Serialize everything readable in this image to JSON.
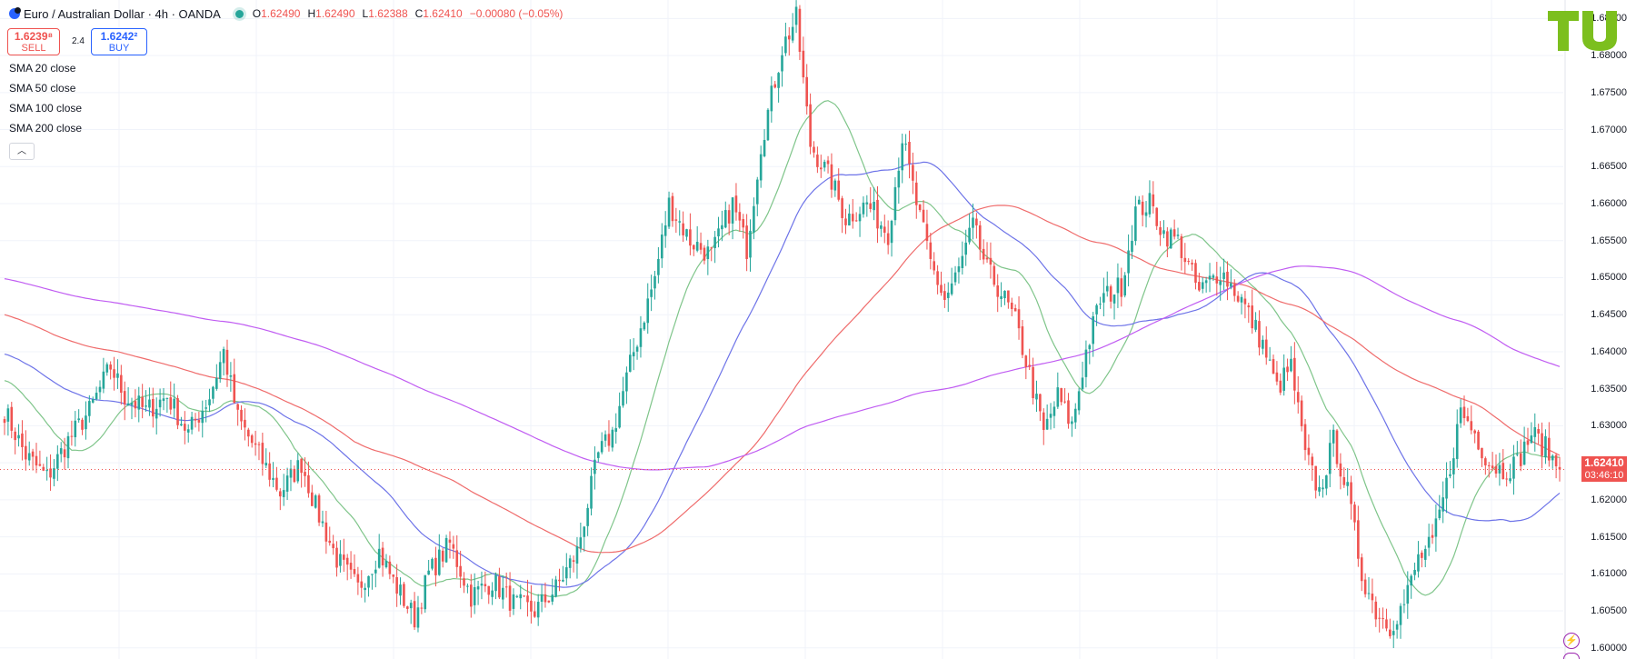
{
  "header": {
    "symbol": "Euro / Australian Dollar · 4h · OANDA",
    "ohlc": [
      {
        "k": "O",
        "v": "1.62490"
      },
      {
        "k": "H",
        "v": "1.62490"
      },
      {
        "k": "L",
        "v": "1.62388"
      },
      {
        "k": "C",
        "v": "1.62410"
      }
    ],
    "change": "−0.00080 (−0.05%)"
  },
  "trade": {
    "sell_price": "1.6239⁸",
    "sell_label": "SELL",
    "spread": "2.4",
    "buy_price": "1.6242²",
    "buy_label": "BUY"
  },
  "indicators": [
    "SMA 20 close",
    "SMA 50 close",
    "SMA 100 close",
    "SMA 200 close"
  ],
  "collapse_icon": "chevron-up-icon",
  "last_price": {
    "price": "1.62410",
    "countdown": "03:46:10"
  },
  "colors": {
    "up": "#26a69a",
    "down": "#ef5350",
    "sma20": "#7fc58a",
    "sma50": "#6d73e8",
    "sma100": "#ef6b6b",
    "sma200": "#c05cf2",
    "accent": "#2962ff",
    "logo": "#7cbf1e"
  },
  "chart_data": {
    "type": "candlestick",
    "symbol": "EUR/AUD",
    "timeframe": "4h",
    "ylim": [
      1.5985,
      1.6875
    ],
    "y_ticks": [
      "1.68500",
      "1.68000",
      "1.67500",
      "1.67000",
      "1.66500",
      "1.66000",
      "1.65500",
      "1.65000",
      "1.64500",
      "1.64000",
      "1.63500",
      "1.63000",
      "1.62500",
      "1.62000",
      "1.61500",
      "1.61000",
      "1.60500",
      "1.60000"
    ],
    "y_tick_values": [
      1.685,
      1.68,
      1.675,
      1.67,
      1.665,
      1.66,
      1.655,
      1.65,
      1.645,
      1.64,
      1.635,
      1.63,
      1.625,
      1.62,
      1.615,
      1.61,
      1.605,
      1.6
    ],
    "close_anchors": [
      [
        0,
        1.632
      ],
      [
        6,
        1.626
      ],
      [
        12,
        1.623
      ],
      [
        18,
        1.628
      ],
      [
        24,
        1.632
      ],
      [
        30,
        1.638
      ],
      [
        34,
        1.634
      ],
      [
        40,
        1.632
      ],
      [
        46,
        1.634
      ],
      [
        52,
        1.629
      ],
      [
        58,
        1.634
      ],
      [
        62,
        1.64
      ],
      [
        66,
        1.631
      ],
      [
        72,
        1.626
      ],
      [
        78,
        1.621
      ],
      [
        84,
        1.625
      ],
      [
        88,
        1.619
      ],
      [
        94,
        1.612
      ],
      [
        100,
        1.608
      ],
      [
        106,
        1.613
      ],
      [
        110,
        1.609
      ],
      [
        116,
        1.604
      ],
      [
        120,
        1.61
      ],
      [
        126,
        1.614
      ],
      [
        132,
        1.607
      ],
      [
        138,
        1.609
      ],
      [
        144,
        1.606
      ],
      [
        150,
        1.605
      ],
      [
        156,
        1.608
      ],
      [
        162,
        1.613
      ],
      [
        168,
        1.626
      ],
      [
        172,
        1.629
      ],
      [
        178,
        1.64
      ],
      [
        184,
        1.65
      ],
      [
        188,
        1.66
      ],
      [
        194,
        1.655
      ],
      [
        200,
        1.653
      ],
      [
        206,
        1.66
      ],
      [
        210,
        1.654
      ],
      [
        214,
        1.668
      ],
      [
        220,
        1.681
      ],
      [
        224,
        1.685
      ],
      [
        228,
        1.668
      ],
      [
        234,
        1.663
      ],
      [
        238,
        1.658
      ],
      [
        244,
        1.66
      ],
      [
        250,
        1.656
      ],
      [
        254,
        1.669
      ],
      [
        258,
        1.66
      ],
      [
        262,
        1.652
      ],
      [
        266,
        1.647
      ],
      [
        270,
        1.651
      ],
      [
        274,
        1.657
      ],
      [
        278,
        1.651
      ],
      [
        282,
        1.648
      ],
      [
        286,
        1.644
      ],
      [
        290,
        1.637
      ],
      [
        294,
        1.629
      ],
      [
        298,
        1.634
      ],
      [
        302,
        1.63
      ],
      [
        306,
        1.64
      ],
      [
        310,
        1.647
      ],
      [
        316,
        1.649
      ],
      [
        320,
        1.659
      ],
      [
        324,
        1.66
      ],
      [
        328,
        1.656
      ],
      [
        332,
        1.655
      ],
      [
        338,
        1.648
      ],
      [
        344,
        1.651
      ],
      [
        350,
        1.647
      ],
      [
        356,
        1.641
      ],
      [
        360,
        1.635
      ],
      [
        364,
        1.638
      ],
      [
        368,
        1.626
      ],
      [
        372,
        1.621
      ],
      [
        376,
        1.628
      ],
      [
        380,
        1.621
      ],
      [
        384,
        1.61
      ],
      [
        388,
        1.605
      ],
      [
        392,
        1.603
      ],
      [
        396,
        1.606
      ],
      [
        400,
        1.612
      ],
      [
        404,
        1.614
      ],
      [
        408,
        1.622
      ],
      [
        412,
        1.632
      ],
      [
        416,
        1.629
      ],
      [
        420,
        1.625
      ],
      [
        424,
        1.624
      ],
      [
        428,
        1.625
      ],
      [
        432,
        1.629
      ],
      [
        436,
        1.627
      ],
      [
        440,
        1.624
      ]
    ],
    "last_close": 1.6241,
    "series": [
      {
        "name": "SMA 20 close",
        "color_key": "sma20",
        "period": 20
      },
      {
        "name": "SMA 50 close",
        "color_key": "sma50",
        "period": 50
      },
      {
        "name": "SMA 100 close",
        "color_key": "sma100",
        "period": 100
      },
      {
        "name": "SMA 200 close",
        "color_key": "sma200",
        "period": 200
      }
    ],
    "sma_endpoints": {
      "SMA 20 close": [
        1.6255
      ],
      "SMA 50 close": [
        1.6245
      ],
      "SMA 100 close": [
        1.6199
      ],
      "SMA 200 close": [
        1.6278
      ]
    },
    "grid": true
  }
}
